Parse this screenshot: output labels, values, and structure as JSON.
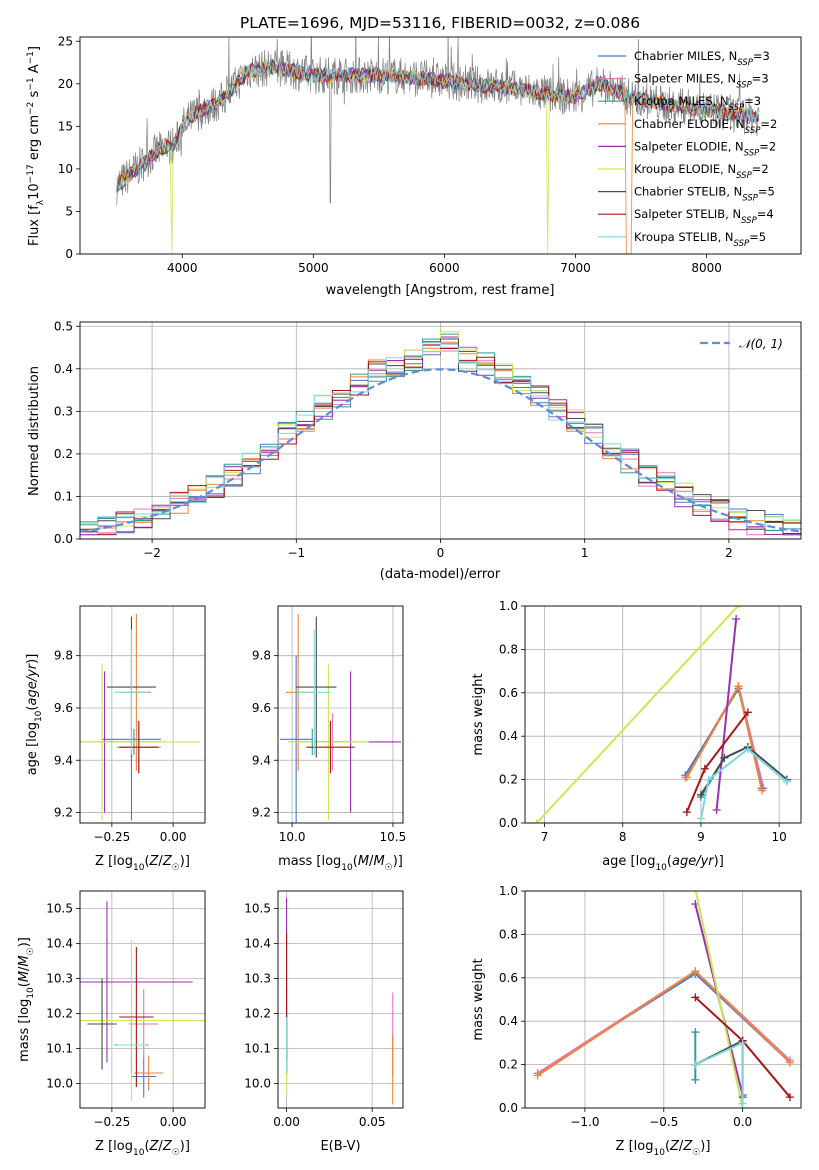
{
  "figure": {
    "title": "PLATE=1696, MJD=53116, FIBERID=0032, z=0.086"
  },
  "legend1": [
    {
      "label": "Chabrier MILES, N",
      "sub": "SSP",
      "tail": "=3",
      "color": "#4878d0"
    },
    {
      "label": "Salpeter MILES, N",
      "sub": "SSP",
      "tail": "=3",
      "color": "#e377c2"
    },
    {
      "label": "Kroupa MILES, N",
      "sub": "SSP",
      "tail": "=3",
      "color": "#2f9e9e"
    },
    {
      "label": "Chabrier ELODIE, N",
      "sub": "SSP",
      "tail": "=2",
      "color": "#ee8536"
    },
    {
      "label": "Salpeter ELODIE, N",
      "sub": "SSP",
      "tail": "=2",
      "color": "#9b2fb5"
    },
    {
      "label": "Kroupa ELODIE, N",
      "sub": "SSP",
      "tail": "=2",
      "color": "#cde655"
    },
    {
      "label": "Chabrier STELIB, N",
      "sub": "SSP",
      "tail": "=5",
      "color": "#4a4a4a"
    },
    {
      "label": "Salpeter STELIB, N",
      "sub": "SSP",
      "tail": "=4",
      "color": "#a51616"
    },
    {
      "label": "Kroupa STELIB, N",
      "sub": "SSP",
      "tail": "=5",
      "color": "#7fd6dc"
    }
  ],
  "legend2": {
    "label": "𝒩(0, 1)",
    "color": "#5b8fd9"
  },
  "chart_data": [
    {
      "id": "spectrum",
      "type": "line",
      "title": "PLATE=1696, MJD=53116, FIBERID=0032, z=0.086",
      "xlabel": "wavelength [Angstrom, rest frame]",
      "ylabel_parts": [
        "Flux [f",
        "λ",
        "10",
        "−17",
        " erg cm",
        "−2",
        " s",
        "−1",
        " A",
        "−1",
        "]"
      ],
      "xlim": [
        3220,
        8720
      ],
      "ylim": [
        0,
        25.5
      ],
      "xticks": [
        4000,
        5000,
        6000,
        7000,
        8000
      ],
      "yticks": [
        0,
        5,
        10,
        15,
        20,
        25
      ],
      "continuum": [
        [
          3500,
          8
        ],
        [
          3650,
          10
        ],
        [
          3800,
          12
        ],
        [
          3950,
          13
        ],
        [
          4000,
          15
        ],
        [
          4100,
          16.5
        ],
        [
          4300,
          18
        ],
        [
          4500,
          21.5
        ],
        [
          4700,
          22
        ],
        [
          5000,
          21
        ],
        [
          5300,
          21
        ],
        [
          5600,
          21
        ],
        [
          5900,
          20.5
        ],
        [
          6200,
          20
        ],
        [
          6500,
          19.5
        ],
        [
          6700,
          19
        ],
        [
          6900,
          18.5
        ],
        [
          7000,
          18.5
        ],
        [
          7200,
          20
        ],
        [
          7400,
          18.5
        ],
        [
          7700,
          17.5
        ],
        [
          8000,
          17
        ],
        [
          8400,
          16
        ]
      ]
    },
    {
      "id": "residuals",
      "type": "line",
      "xlabel": "(data-model)/error",
      "ylabel": "Normed distribution",
      "xlim": [
        -2.5,
        2.5
      ],
      "ylim": [
        0,
        0.51
      ],
      "xticks": [
        -2,
        -1,
        0,
        1,
        2
      ],
      "xtick_labels": [
        "−2",
        "−1",
        "0",
        "1",
        "2"
      ],
      "yticks": [
        0,
        0.1,
        0.2,
        0.3,
        0.4,
        0.5
      ],
      "ytick_labels": [
        "0.0",
        "0.1",
        "0.2",
        "0.3",
        "0.4",
        "0.5"
      ]
    },
    {
      "id": "age-vs-Z",
      "type": "scatter",
      "xlabel": "Z [log10(Z/Z☉)]",
      "ylabel": "age [log10(age/yr)]",
      "xlim": [
        -0.38,
        0.13
      ],
      "ylim": [
        9.16,
        9.99
      ],
      "xticks": [
        -0.25,
        0.0
      ],
      "xtick_labels": [
        "−0.25",
        "0.00"
      ],
      "yticks": [
        9.2,
        9.4,
        9.6,
        9.8
      ],
      "ytick_labels": [
        "9.2",
        "9.4",
        "9.6",
        "9.8"
      ],
      "points": [
        {
          "x": -0.17,
          "y": 9.48,
          "xerr": 0.12,
          "yerr": 0.31,
          "c": "#4878d0"
        },
        {
          "x": -0.14,
          "y": 9.45,
          "xerr": 0.09,
          "yerr": 0.1,
          "c": "#e377c2"
        },
        {
          "x": -0.16,
          "y": 9.47,
          "xerr": 0.13,
          "yerr": 0.05,
          "c": "#2f9e9e"
        },
        {
          "x": -0.15,
          "y": 9.66,
          "xerr": 0.06,
          "yerr": 0.3,
          "c": "#ee8536"
        },
        {
          "x": -0.28,
          "y": 9.47,
          "xerr": 0.2,
          "yerr": 0.27,
          "c": "#9b2fb5"
        },
        {
          "x": -0.29,
          "y": 9.47,
          "xerr": 0.4,
          "yerr": 0.3,
          "c": "#cde655"
        },
        {
          "x": -0.17,
          "y": 9.68,
          "xerr": 0.1,
          "yerr": 0.27,
          "c": "#4a4a4a"
        },
        {
          "x": -0.14,
          "y": 9.45,
          "xerr": 0.08,
          "yerr": 0.1,
          "c": "#a51616"
        },
        {
          "x": -0.17,
          "y": 9.66,
          "xerr": 0.07,
          "yerr": 0.24,
          "c": "#7fd6dc"
        }
      ]
    },
    {
      "id": "age-vs-mass",
      "type": "scatter",
      "xlabel": "mass [log10(M/M☉)]",
      "xlim": [
        9.93,
        10.55
      ],
      "ylim": [
        9.16,
        9.99
      ],
      "xticks": [
        10.0,
        10.5
      ],
      "xtick_labels": [
        "10.0",
        "10.5"
      ],
      "yticks": [
        9.2,
        9.4,
        9.6,
        9.8
      ],
      "ytick_labels": [
        "9.2",
        "9.4",
        "9.6",
        "9.8"
      ],
      "points": [
        {
          "x": 10.02,
          "y": 9.48,
          "xerr": 0.08,
          "yerr": 0.32,
          "c": "#4878d0"
        },
        {
          "x": 10.2,
          "y": 9.47,
          "xerr": 0.1,
          "yerr": 0.11,
          "c": "#e377c2"
        },
        {
          "x": 10.1,
          "y": 9.47,
          "xerr": 0.12,
          "yerr": 0.05,
          "c": "#2f9e9e"
        },
        {
          "x": 10.03,
          "y": 9.66,
          "xerr": 0.06,
          "yerr": 0.3,
          "c": "#ee8536"
        },
        {
          "x": 10.29,
          "y": 9.47,
          "xerr": 0.25,
          "yerr": 0.27,
          "c": "#9b2fb5"
        },
        {
          "x": 10.18,
          "y": 9.47,
          "xerr": 0.2,
          "yerr": 0.3,
          "c": "#cde655"
        },
        {
          "x": 10.12,
          "y": 9.68,
          "xerr": 0.1,
          "yerr": 0.27,
          "c": "#4a4a4a"
        },
        {
          "x": 10.19,
          "y": 9.45,
          "xerr": 0.12,
          "yerr": 0.1,
          "c": "#a51616"
        },
        {
          "x": 10.11,
          "y": 9.66,
          "xerr": 0.08,
          "yerr": 0.24,
          "c": "#7fd6dc"
        }
      ]
    },
    {
      "id": "weight-vs-age",
      "type": "line",
      "xlabel": "age [log10(age/yr)]",
      "ylabel": "mass weight",
      "xlim": [
        6.75,
        10.28
      ],
      "ylim": [
        0,
        1
      ],
      "xticks": [
        7,
        8,
        9,
        10
      ],
      "yticks": [
        0,
        0.2,
        0.4,
        0.6,
        0.8,
        1.0
      ],
      "ytick_labels": [
        "0.0",
        "0.2",
        "0.4",
        "0.6",
        "0.8",
        "1.0"
      ],
      "series": [
        {
          "c": "#e377c2",
          "pts": [
            [
              8.8,
              0.21
            ],
            [
              9.48,
              0.63
            ],
            [
              9.8,
              0.16
            ]
          ]
        },
        {
          "c": "#2f9e9e",
          "pts": [
            [
              9.0,
              0.12
            ],
            [
              9.3,
              0.3
            ],
            [
              9.6,
              0.35
            ],
            [
              10.1,
              0.2
            ]
          ]
        },
        {
          "c": "#4878d0",
          "pts": [
            [
              8.8,
              0.22
            ],
            [
              9.48,
              0.62
            ],
            [
              9.78,
              0.16
            ]
          ]
        },
        {
          "c": "#ee8536",
          "pts": [
            [
              8.82,
              0.21
            ],
            [
              9.48,
              0.63
            ],
            [
              9.78,
              0.15
            ]
          ]
        },
        {
          "c": "#9b2fb5",
          "pts": [
            [
              9.2,
              0.06
            ],
            [
              9.45,
              0.94
            ]
          ]
        },
        {
          "c": "#cde655",
          "pts": [
            [
              6.9,
              0.0
            ],
            [
              9.5,
              1.01
            ]
          ]
        },
        {
          "c": "#4a4a4a",
          "pts": [
            [
              9.0,
              0.13
            ],
            [
              9.3,
              0.3
            ],
            [
              9.6,
              0.35
            ],
            [
              10.1,
              0.2
            ]
          ]
        },
        {
          "c": "#a51616",
          "pts": [
            [
              8.82,
              0.05
            ],
            [
              9.05,
              0.25
            ],
            [
              9.6,
              0.51
            ]
          ]
        },
        {
          "c": "#7fd6dc",
          "pts": [
            [
              9.0,
              0.02
            ],
            [
              9.1,
              0.2
            ],
            [
              9.6,
              0.34
            ],
            [
              10.1,
              0.19
            ]
          ]
        }
      ]
    },
    {
      "id": "mass-vs-Z",
      "type": "scatter",
      "xlabel": "Z [log10(Z/Z☉)]",
      "ylabel": "mass [log10(M/M☉)]",
      "xlim": [
        -0.38,
        0.13
      ],
      "ylim": [
        9.93,
        10.55
      ],
      "xticks": [
        -0.25,
        0.0
      ],
      "xtick_labels": [
        "−0.25",
        "0.00"
      ],
      "yticks": [
        10.0,
        10.1,
        10.2,
        10.3,
        10.4,
        10.5
      ],
      "ytick_labels": [
        "10.0",
        "10.1",
        "10.2",
        "10.3",
        "10.4",
        "10.5"
      ],
      "points": [
        {
          "x": -0.12,
          "y": 10.02,
          "xerr": 0.05,
          "yerr": 0.06,
          "c": "#4878d0"
        },
        {
          "x": -0.12,
          "y": 10.17,
          "xerr": 0.06,
          "yerr": 0.1,
          "c": "#e377c2"
        },
        {
          "x": -0.17,
          "y": 10.11,
          "xerr": 0.07,
          "yerr": 0.07,
          "c": "#2f9e9e"
        },
        {
          "x": -0.1,
          "y": 10.03,
          "xerr": 0.06,
          "yerr": 0.05,
          "c": "#ee8536"
        },
        {
          "x": -0.27,
          "y": 10.29,
          "xerr": 0.35,
          "yerr": 0.23,
          "c": "#9b2fb5"
        },
        {
          "x": -0.17,
          "y": 10.18,
          "xerr": 0.4,
          "yerr": 0.23,
          "c": "#cde655"
        },
        {
          "x": -0.29,
          "y": 10.17,
          "xerr": 0.06,
          "yerr": 0.13,
          "c": "#4a4a4a"
        },
        {
          "x": -0.15,
          "y": 10.19,
          "xerr": 0.07,
          "yerr": 0.2,
          "c": "#a51616"
        },
        {
          "x": -0.17,
          "y": 10.11,
          "xerr": 0.06,
          "yerr": 0.08,
          "c": "#7fd6dc"
        }
      ]
    },
    {
      "id": "mass-vs-ebv",
      "type": "scatter",
      "xlabel": "E(B-V)",
      "xlim": [
        -0.005,
        0.068
      ],
      "ylim": [
        9.93,
        10.55
      ],
      "xticks": [
        0.0,
        0.05
      ],
      "xtick_labels": [
        "0.00",
        "0.05"
      ],
      "yticks": [
        10.0,
        10.1,
        10.2,
        10.3,
        10.4,
        10.5
      ],
      "ytick_labels": [
        "10.0",
        "10.1",
        "10.2",
        "10.3",
        "10.4",
        "10.5"
      ],
      "points": [
        {
          "x": 0.0,
          "y": 10.1,
          "xerr": 0.0,
          "yerr": 0.08,
          "c": "#4878d0"
        },
        {
          "x": 0.062,
          "y": 10.14,
          "xerr": 0.0,
          "yerr": 0.12,
          "c": "#e377c2"
        },
        {
          "x": 0.0,
          "y": 10.11,
          "xerr": 0.0,
          "yerr": 0.08,
          "c": "#2f9e9e"
        },
        {
          "x": 0.062,
          "y": 10.04,
          "xerr": 0.0,
          "yerr": 0.1,
          "c": "#ee8536"
        },
        {
          "x": 0.0,
          "y": 10.3,
          "xerr": 0.0,
          "yerr": 0.23,
          "c": "#9b2fb5"
        },
        {
          "x": 0.0,
          "y": 10.17,
          "xerr": 0.0,
          "yerr": 0.2,
          "c": "#cde655"
        },
        {
          "x": 0.0,
          "y": 10.15,
          "xerr": 0.0,
          "yerr": 0.12,
          "c": "#4a4a4a"
        },
        {
          "x": 0.0,
          "y": 10.25,
          "xerr": 0.0,
          "yerr": 0.18,
          "c": "#a51616"
        },
        {
          "x": 0.0,
          "y": 10.11,
          "xerr": 0.0,
          "yerr": 0.08,
          "c": "#7fd6dc"
        }
      ]
    },
    {
      "id": "weight-vs-Z",
      "type": "line",
      "xlabel": "Z [log10(Z/Z☉)]",
      "ylabel": "mass weight",
      "xlim": [
        -1.38,
        0.37
      ],
      "ylim": [
        0,
        1
      ],
      "xticks": [
        -1.0,
        -0.5,
        0.0
      ],
      "xtick_labels": [
        "−1.0",
        "−0.5",
        "0.0"
      ],
      "yticks": [
        0,
        0.2,
        0.4,
        0.6,
        0.8,
        1.0
      ],
      "ytick_labels": [
        "0.0",
        "0.2",
        "0.4",
        "0.6",
        "0.8",
        "1.0"
      ],
      "series": [
        {
          "c": "#4878d0",
          "pts": [
            [
              -1.3,
              0.16
            ],
            [
              -0.3,
              0.62
            ],
            [
              0.3,
              0.21
            ]
          ]
        },
        {
          "c": "#e377c2",
          "pts": [
            [
              -1.3,
              0.16
            ],
            [
              -0.3,
              0.63
            ],
            [
              0.3,
              0.22
            ]
          ]
        },
        {
          "c": "#2f9e9e",
          "pts": [
            [
              -0.3,
              0.13
            ],
            [
              -0.3,
              0.35
            ]
          ]
        },
        {
          "c": "#ee8536",
          "pts": [
            [
              -1.3,
              0.15
            ],
            [
              -0.3,
              0.63
            ],
            [
              0.3,
              0.21
            ]
          ]
        },
        {
          "c": "#9b2fb5",
          "pts": [
            [
              -0.3,
              0.94
            ],
            [
              0.0,
              0.06
            ]
          ]
        },
        {
          "c": "#cde655",
          "pts": [
            [
              -0.3,
              1.01
            ],
            [
              0.0,
              0.0
            ]
          ]
        },
        {
          "c": "#4a4a4a",
          "pts": [
            [
              -0.3,
              0.2
            ],
            [
              0.0,
              0.31
            ],
            [
              0.0,
              0.05
            ]
          ]
        },
        {
          "c": "#a51616",
          "pts": [
            [
              -0.3,
              0.51
            ],
            [
              0.0,
              0.31
            ],
            [
              0.3,
              0.05
            ]
          ]
        },
        {
          "c": "#7fd6dc",
          "pts": [
            [
              -0.3,
              0.2
            ],
            [
              0.0,
              0.3
            ],
            [
              0.0,
              0.02
            ]
          ]
        }
      ]
    }
  ]
}
